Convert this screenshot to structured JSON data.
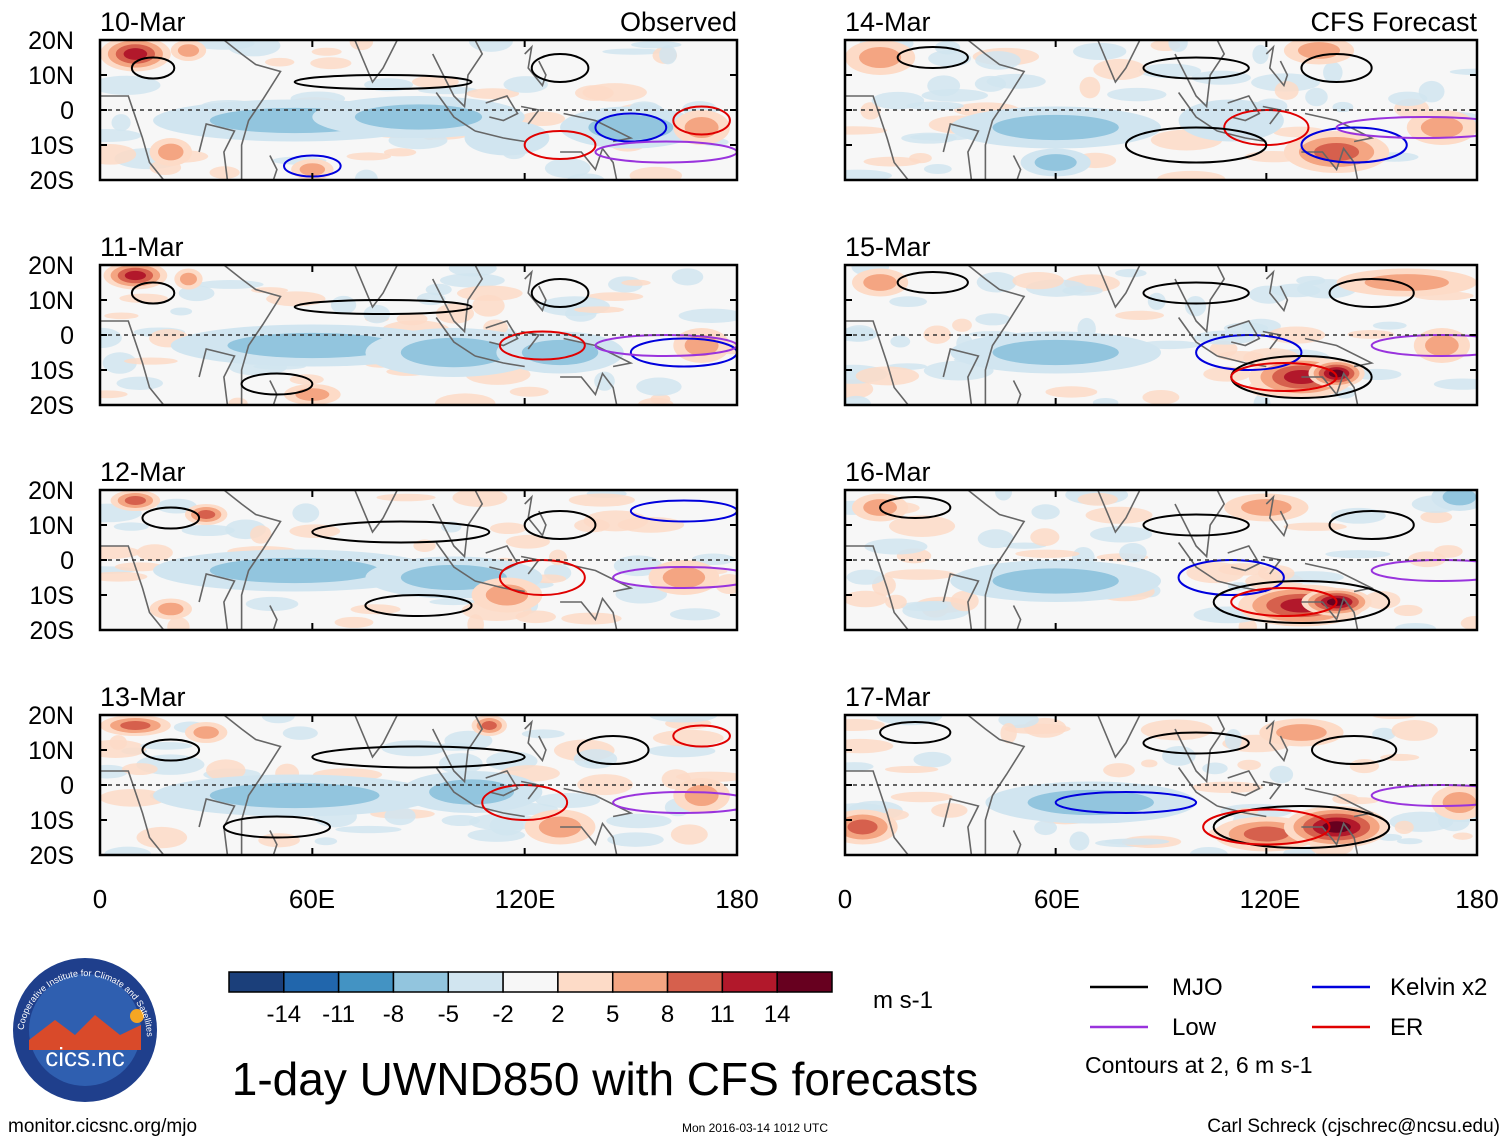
{
  "figure": {
    "main_title": "1-day UWND850 with CFS forecasts",
    "left_column_title": "Observed",
    "right_column_title": "CFS Forecast",
    "colorbar_units": "m s-1",
    "contour_note": "Contours at 2, 6 m s-1",
    "source_url": "monitor.cicsnc.org/mjo",
    "timestamp": "Mon 2016-03-14 1012 UTC",
    "credit": "Carl Schreck (cjschrec@ncsu.edu)",
    "logo_text": "cics.nc",
    "logo_ring_text": "Cooperative Institute for Climate and Satellites"
  },
  "chart_data": {
    "type": "heatmap",
    "title": "1-day UWND850 with CFS forecasts",
    "variable": "UWND850",
    "units": "m s-1",
    "x_ticks": [
      "0",
      "60E",
      "120E",
      "180"
    ],
    "x_tick_values": [
      0,
      60,
      120,
      180
    ],
    "xlim": [
      0,
      180
    ],
    "y_ticks": [
      "20N",
      "10N",
      "0",
      "10S",
      "20S"
    ],
    "y_tick_values": [
      20,
      10,
      0,
      -10,
      -20
    ],
    "ylim": [
      -20,
      20
    ],
    "panels": [
      {
        "date": "10-Mar",
        "source": "Observed"
      },
      {
        "date": "11-Mar",
        "source": "Observed"
      },
      {
        "date": "12-Mar",
        "source": "Observed"
      },
      {
        "date": "13-Mar",
        "source": "Observed"
      },
      {
        "date": "14-Mar",
        "source": "CFS Forecast"
      },
      {
        "date": "15-Mar",
        "source": "CFS Forecast"
      },
      {
        "date": "16-Mar",
        "source": "CFS Forecast"
      },
      {
        "date": "17-Mar",
        "source": "CFS Forecast"
      }
    ],
    "colorbar": {
      "levels": [
        "-14",
        "-11",
        "-8",
        "-5",
        "-2",
        "2",
        "5",
        "8",
        "11",
        "14"
      ],
      "colors": [
        "#1b3f7a",
        "#2166ac",
        "#4393c3",
        "#92c5de",
        "#d1e5f0",
        "#f7f7f7",
        "#fddbc7",
        "#f4a582",
        "#d6604d",
        "#b2182b",
        "#67001f"
      ]
    },
    "legend": [
      {
        "label": "MJO",
        "color": "#000000"
      },
      {
        "label": "Kelvin x2",
        "color": "#0000dd"
      },
      {
        "label": "Low",
        "color": "#9933dd"
      },
      {
        "label": "ER",
        "color": "#e00000"
      }
    ],
    "contour_levels": [
      2,
      6
    ]
  }
}
